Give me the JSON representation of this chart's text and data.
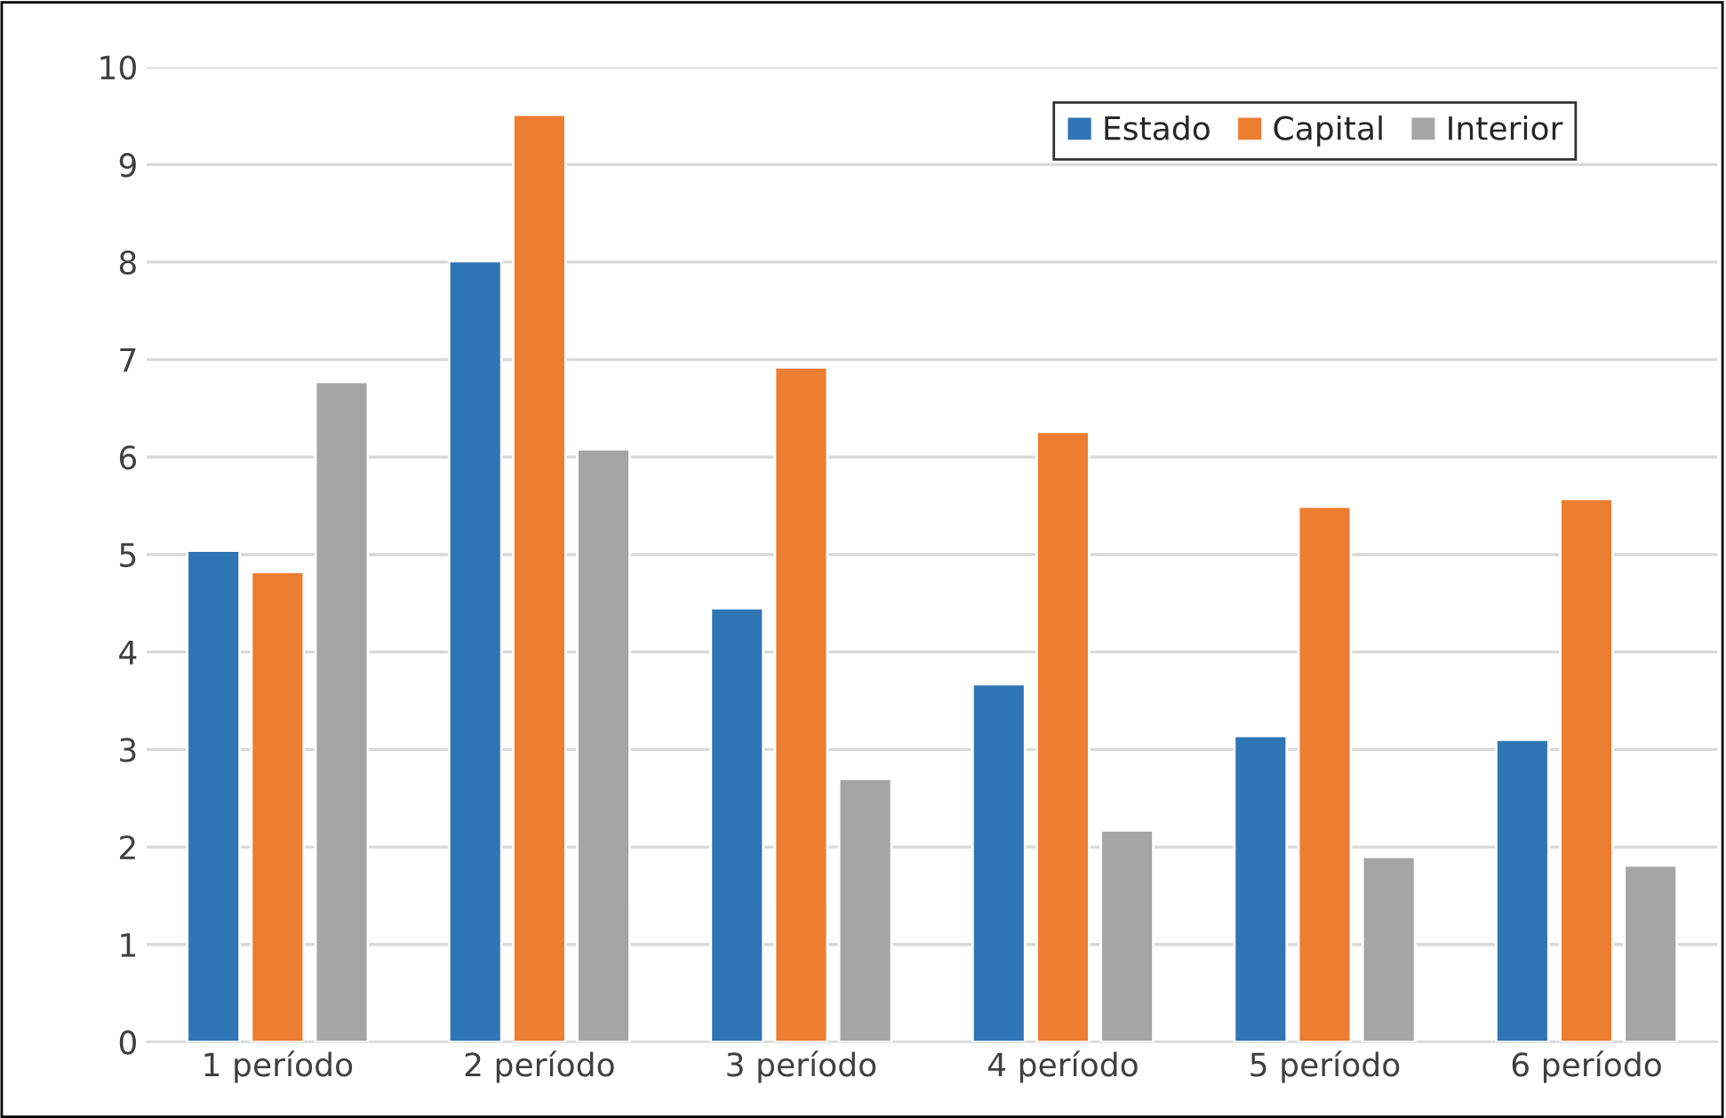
{
  "chart_data": {
    "type": "bar",
    "categories": [
      "1 período",
      "2 período",
      "3 período",
      "4 período",
      "5 período",
      "6 período"
    ],
    "series": [
      {
        "name": "Estado",
        "color": "#2e75b6",
        "values": [
          5.04,
          8.01,
          4.45,
          3.67,
          3.14,
          3.1
        ]
      },
      {
        "name": "Capital",
        "color": "#ed7d31",
        "values": [
          4.82,
          9.51,
          6.92,
          6.26,
          5.49,
          5.57
        ]
      },
      {
        "name": "Interior",
        "color": "#a5a5a5",
        "values": [
          6.77,
          6.08,
          2.7,
          2.17,
          1.9,
          1.81
        ]
      }
    ],
    "ylim": [
      0,
      10
    ],
    "yticks": [
      0,
      1,
      2,
      3,
      4,
      5,
      6,
      7,
      8,
      9,
      10
    ],
    "grid": "y",
    "legend": "top right"
  }
}
